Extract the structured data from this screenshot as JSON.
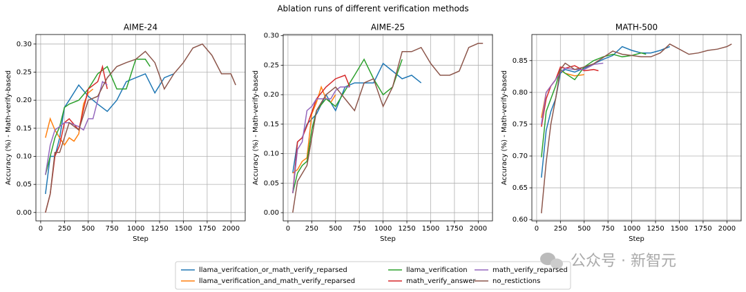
{
  "title": "Ablation runs of different verification methods",
  "watermark": "公众号 · 新智元",
  "legend": "lower center",
  "chart_data": [
    {
      "type": "line",
      "title": "AIME-24",
      "xlabel": "Step",
      "ylabel": "Accuracy (%) - Math-verify-based",
      "grid": true,
      "xlim": [
        -50,
        2150
      ],
      "ylim": [
        -0.015,
        0.317
      ],
      "xticks": [
        0,
        250,
        500,
        750,
        1000,
        1250,
        1500,
        1750,
        2000
      ],
      "yticks": [
        {
          "value": 0,
          "label": "0.00"
        },
        {
          "value": 0.05,
          "label": "0.05"
        },
        {
          "value": 0.1,
          "label": "0.10"
        },
        {
          "value": 0.15,
          "label": "0.15"
        },
        {
          "value": 0.2,
          "label": "0.20"
        },
        {
          "value": 0.25,
          "label": "0.25"
        },
        {
          "value": 0.3,
          "label": "0.30"
        }
      ],
      "series": [
        {
          "name": "llama_verifcation_or_math_verify_reparsed",
          "color": "#1f77b4",
          "x": [
            50,
            100,
            150,
            200,
            250,
            300,
            400,
            500,
            600,
            700,
            800,
            900,
            1000,
            1100,
            1200,
            1300,
            1400
          ],
          "values": [
            0.033,
            0.1,
            0.1,
            0.133,
            0.187,
            0.2,
            0.227,
            0.207,
            0.193,
            0.18,
            0.2,
            0.233,
            0.24,
            0.247,
            0.213,
            0.24,
            0.247
          ]
        },
        {
          "name": "llama_verification_and_math_verify_reparsed",
          "color": "#ff7f0e",
          "x": [
            50,
            100,
            150,
            200,
            250,
            300,
            350,
            400,
            450,
            500,
            550
          ],
          "values": [
            0.133,
            0.167,
            0.147,
            0.133,
            0.12,
            0.133,
            0.127,
            0.14,
            0.193,
            0.213,
            0.22
          ]
        },
        {
          "name": "llama_verification",
          "color": "#2ca02c",
          "x": [
            50,
            100,
            150,
            200,
            250,
            300,
            400,
            500,
            600,
            700,
            800,
            900,
            1000,
            1100,
            1150
          ],
          "values": [
            0.067,
            0.1,
            0.133,
            0.153,
            0.187,
            0.193,
            0.2,
            0.22,
            0.247,
            0.26,
            0.22,
            0.22,
            0.273,
            0.273,
            0.26
          ]
        },
        {
          "name": "math_verify_answer",
          "color": "#d62728",
          "x": [
            50,
            100,
            150,
            200,
            250,
            300,
            400,
            500,
            600,
            650,
            700
          ],
          "values": [
            0,
            0.033,
            0.1,
            0.12,
            0.16,
            0.167,
            0.147,
            0.22,
            0.233,
            0.26,
            0.22
          ]
        },
        {
          "name": "math_verify_reparsed",
          "color": "#9467bd",
          "x": [
            50,
            100,
            150,
            200,
            250,
            300,
            400,
            450,
            500,
            550,
            600,
            650,
            700
          ],
          "values": [
            0.067,
            0.12,
            0.147,
            0.153,
            0.16,
            0.16,
            0.153,
            0.147,
            0.167,
            0.167,
            0.2,
            0.233,
            0.227
          ]
        },
        {
          "name": "no_restictions",
          "color": "#8c564b",
          "x": [
            50,
            100,
            150,
            200,
            300,
            400,
            500,
            600,
            700,
            800,
            900,
            1000,
            1100,
            1200,
            1300,
            1400,
            1500,
            1600,
            1700,
            1800,
            1900,
            2000,
            2050
          ],
          "values": [
            0,
            0.033,
            0.107,
            0.107,
            0.16,
            0.147,
            0.2,
            0.207,
            0.24,
            0.26,
            0.267,
            0.273,
            0.287,
            0.267,
            0.22,
            0.247,
            0.267,
            0.293,
            0.3,
            0.28,
            0.247,
            0.247,
            0.227
          ]
        }
      ]
    },
    {
      "type": "line",
      "title": "AIME-25",
      "xlabel": "Step",
      "ylabel": "Accuracy (%) - Math-verify-based",
      "grid": true,
      "xlim": [
        -50,
        2150
      ],
      "ylim": [
        -0.014,
        0.302
      ],
      "xticks": [
        0,
        250,
        500,
        750,
        1000,
        1250,
        1500,
        1750,
        2000
      ],
      "yticks": [
        {
          "value": 0,
          "label": "0.00"
        },
        {
          "value": 0.05,
          "label": "0.05"
        },
        {
          "value": 0.1,
          "label": "0.10"
        },
        {
          "value": 0.15,
          "label": "0.15"
        },
        {
          "value": 0.2,
          "label": "0.20"
        },
        {
          "value": 0.25,
          "label": "0.25"
        },
        {
          "value": 0.3,
          "label": "0.30"
        }
      ],
      "series": [
        {
          "name": "llama_verifcation_or_math_verify_reparsed",
          "color": "#1f77b4",
          "x": [
            50,
            100,
            150,
            200,
            300,
            400,
            500,
            600,
            700,
            800,
            900,
            1000,
            1100,
            1200,
            1300,
            1400
          ],
          "values": [
            0.067,
            0.12,
            0.127,
            0.15,
            0.167,
            0.2,
            0.173,
            0.213,
            0.22,
            0.22,
            0.22,
            0.253,
            0.24,
            0.227,
            0.233,
            0.22
          ]
        },
        {
          "name": "llama_verification_and_math_verify_reparsed",
          "color": "#ff7f0e",
          "x": [
            50,
            100,
            150,
            200,
            250,
            300,
            350,
            400,
            450,
            500
          ],
          "values": [
            0.067,
            0.073,
            0.087,
            0.093,
            0.167,
            0.187,
            0.213,
            0.193,
            0.187,
            0.2
          ]
        },
        {
          "name": "llama_verification",
          "color": "#2ca02c",
          "x": [
            50,
            100,
            150,
            200,
            250,
            300,
            400,
            500,
            600,
            700,
            800,
            900,
            1000,
            1100,
            1200
          ],
          "values": [
            0.033,
            0.067,
            0.08,
            0.087,
            0.14,
            0.173,
            0.193,
            0.18,
            0.207,
            0.233,
            0.26,
            0.227,
            0.2,
            0.213,
            0.26
          ]
        },
        {
          "name": "math_verify_answer",
          "color": "#d62728",
          "x": [
            50,
            100,
            150,
            200,
            300,
            400,
            500,
            600,
            650
          ],
          "values": [
            0.033,
            0.12,
            0.127,
            0.147,
            0.193,
            0.213,
            0.227,
            0.233,
            0.213
          ]
        },
        {
          "name": "math_verify_reparsed",
          "color": "#9467bd",
          "x": [
            50,
            100,
            150,
            200,
            250,
            300,
            400,
            450,
            500,
            550,
            600,
            650
          ],
          "values": [
            0.033,
            0.107,
            0.12,
            0.173,
            0.18,
            0.193,
            0.193,
            0.193,
            0.207,
            0.213,
            0.213,
            0.213
          ]
        },
        {
          "name": "no_restictions",
          "color": "#8c564b",
          "x": [
            50,
            100,
            200,
            300,
            400,
            500,
            600,
            700,
            800,
            900,
            1000,
            1100,
            1200,
            1300,
            1400,
            1500,
            1600,
            1700,
            1800,
            1900,
            2000,
            2050
          ],
          "values": [
            0,
            0.053,
            0.08,
            0.173,
            0.2,
            0.213,
            0.193,
            0.173,
            0.22,
            0.227,
            0.18,
            0.213,
            0.273,
            0.273,
            0.28,
            0.253,
            0.233,
            0.233,
            0.24,
            0.28,
            0.287,
            0.287
          ]
        }
      ]
    },
    {
      "type": "line",
      "title": "MATH-500",
      "xlabel": "Step",
      "ylabel": "Accuracy (%) - Math-verify-based",
      "grid": true,
      "xlim": [
        -50,
        2150
      ],
      "ylim": [
        0.598,
        0.891
      ],
      "xticks": [
        0,
        250,
        500,
        750,
        1000,
        1250,
        1500,
        1750,
        2000
      ],
      "yticks": [
        {
          "value": 0.6,
          "label": "0.60"
        },
        {
          "value": 0.65,
          "label": "0.65"
        },
        {
          "value": 0.7,
          "label": "0.70"
        },
        {
          "value": 0.75,
          "label": "0.75"
        },
        {
          "value": 0.8,
          "label": "0.80"
        },
        {
          "value": 0.85,
          "label": "0.85"
        }
      ],
      "series": [
        {
          "name": "llama_verifcation_or_math_verify_reparsed",
          "color": "#1f77b4",
          "x": [
            50,
            100,
            150,
            200,
            250,
            300,
            400,
            500,
            600,
            700,
            800,
            900,
            1000,
            1100,
            1200,
            1300,
            1400
          ],
          "values": [
            0.666,
            0.74,
            0.77,
            0.79,
            0.83,
            0.836,
            0.832,
            0.838,
            0.845,
            0.852,
            0.858,
            0.872,
            0.866,
            0.862,
            0.862,
            0.866,
            0.872
          ]
        },
        {
          "name": "llama_verification_and_math_verify_reparsed",
          "color": "#ff7f0e",
          "x": [
            50,
            100,
            150,
            200,
            250,
            300,
            400,
            500
          ],
          "values": [
            0.76,
            0.8,
            0.81,
            0.82,
            0.835,
            0.83,
            0.826,
            0.828
          ]
        },
        {
          "name": "llama_verification",
          "color": "#2ca02c",
          "x": [
            50,
            100,
            150,
            200,
            250,
            300,
            400,
            500,
            600,
            700,
            800,
            900,
            1000,
            1100,
            1150
          ],
          "values": [
            0.698,
            0.77,
            0.79,
            0.81,
            0.836,
            0.83,
            0.82,
            0.84,
            0.85,
            0.856,
            0.86,
            0.856,
            0.858,
            0.862,
            0.86
          ]
        },
        {
          "name": "math_verify_answer",
          "color": "#d62728",
          "x": [
            50,
            100,
            150,
            200,
            250,
            300,
            400,
            500,
            600,
            650
          ],
          "values": [
            0.746,
            0.79,
            0.81,
            0.82,
            0.84,
            0.838,
            0.842,
            0.834,
            0.836,
            0.834
          ]
        },
        {
          "name": "math_verify_reparsed",
          "color": "#9467bd",
          "x": [
            50,
            100,
            150,
            200,
            250,
            300,
            400,
            500,
            600,
            700
          ],
          "values": [
            0.75,
            0.8,
            0.81,
            0.82,
            0.832,
            0.838,
            0.836,
            0.836,
            0.844,
            0.846
          ]
        },
        {
          "name": "no_restictions",
          "color": "#8c564b",
          "x": [
            50,
            100,
            150,
            200,
            250,
            300,
            400,
            500,
            600,
            700,
            800,
            900,
            1000,
            1100,
            1200,
            1300,
            1400,
            1500,
            1600,
            1700,
            1800,
            1900,
            2000,
            2050
          ],
          "values": [
            0.61,
            0.69,
            0.75,
            0.79,
            0.836,
            0.846,
            0.836,
            0.84,
            0.845,
            0.855,
            0.865,
            0.86,
            0.858,
            0.856,
            0.856,
            0.862,
            0.876,
            0.868,
            0.86,
            0.862,
            0.866,
            0.868,
            0.872,
            0.876
          ]
        }
      ]
    }
  ]
}
